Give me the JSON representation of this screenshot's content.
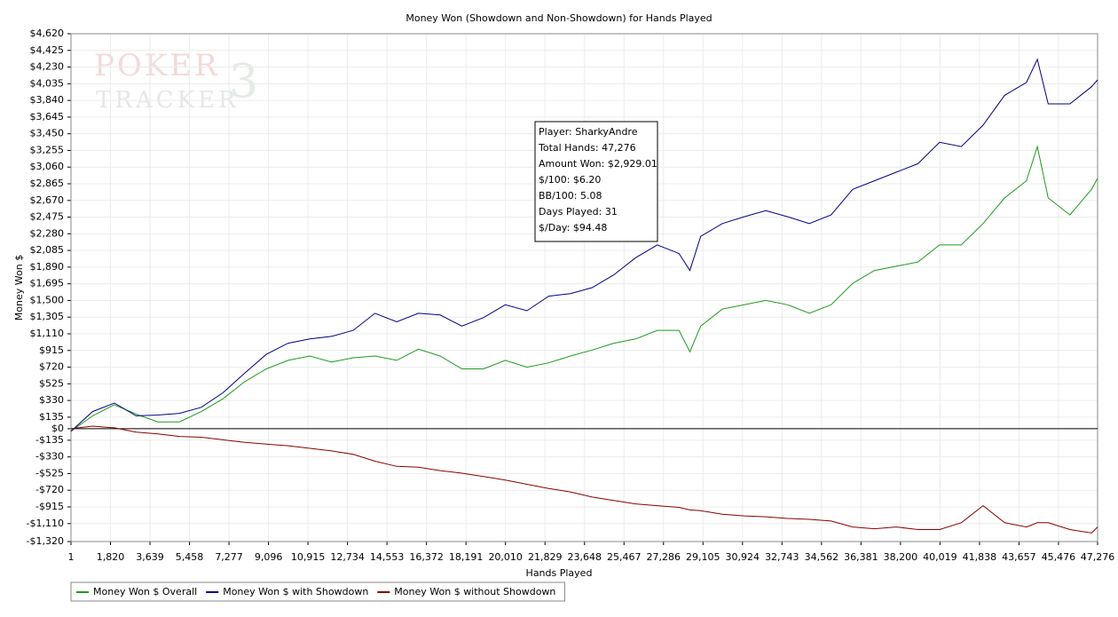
{
  "chart_data": {
    "type": "line",
    "title": "Money Won (Showdown and Non-Showdown) for Hands Played",
    "xlabel": "Hands Played",
    "ylabel": "Money Won $",
    "watermark": [
      "POKER",
      "TRACKER",
      "3"
    ],
    "annotation": [
      "Player: SharkyAndre",
      "Total Hands: 47,276",
      "Amount Won: $2,929.01",
      "$/100: $6.20",
      "BB/100: 5.08",
      "Days Played: 31",
      "$/Day: $94.48"
    ],
    "grid": true,
    "legend": "bottom-left",
    "x": [
      1,
      1000,
      2000,
      3000,
      4000,
      5000,
      6000,
      7000,
      8000,
      9000,
      10000,
      11000,
      12000,
      13000,
      14000,
      15000,
      16000,
      17000,
      18000,
      19000,
      20000,
      21000,
      22000,
      23000,
      24000,
      25000,
      26000,
      27000,
      28000,
      28500,
      29000,
      30000,
      31000,
      32000,
      33000,
      34000,
      35000,
      36000,
      37000,
      38000,
      39000,
      40000,
      41000,
      42000,
      43000,
      44000,
      44500,
      45000,
      46000,
      47000,
      47276
    ],
    "series": [
      {
        "name": "Money Won $ Overall",
        "color": "#1f9a1f",
        "values": [
          -30,
          150,
          280,
          170,
          80,
          80,
          200,
          350,
          550,
          700,
          800,
          850,
          780,
          830,
          850,
          800,
          930,
          850,
          700,
          700,
          800,
          720,
          770,
          850,
          920,
          1000,
          1050,
          1150,
          1150,
          900,
          1200,
          1400,
          1450,
          1500,
          1450,
          1350,
          1450,
          1700,
          1850,
          1900,
          1950,
          2150,
          2150,
          2400,
          2700,
          2900,
          3300,
          2700,
          2500,
          2800,
          2929
        ]
      },
      {
        "name": "Money Won $ with Showdown",
        "color": "#00008b",
        "values": [
          -30,
          200,
          300,
          150,
          160,
          180,
          250,
          420,
          650,
          870,
          1000,
          1050,
          1080,
          1150,
          1350,
          1250,
          1350,
          1330,
          1200,
          1300,
          1450,
          1380,
          1550,
          1580,
          1650,
          1800,
          2000,
          2150,
          2050,
          1850,
          2250,
          2400,
          2480,
          2550,
          2480,
          2400,
          2500,
          2800,
          2900,
          3000,
          3100,
          3350,
          3300,
          3550,
          3900,
          4050,
          4320,
          3800,
          3800,
          4000,
          4080
        ]
      },
      {
        "name": "Money Won $ without Showdown",
        "color": "#8b0000",
        "values": [
          0,
          30,
          10,
          -40,
          -60,
          -90,
          -100,
          -130,
          -160,
          -180,
          -200,
          -230,
          -260,
          -300,
          -380,
          -440,
          -450,
          -490,
          -520,
          -560,
          -600,
          -650,
          -700,
          -740,
          -800,
          -840,
          -880,
          -900,
          -920,
          -950,
          -960,
          -1000,
          -1020,
          -1030,
          -1050,
          -1060,
          -1080,
          -1150,
          -1170,
          -1150,
          -1180,
          -1180,
          -1100,
          -900,
          -1100,
          -1150,
          -1100,
          -1100,
          -1180,
          -1220,
          -1150
        ]
      }
    ],
    "xlim": [
      1,
      47276
    ],
    "xticks": [
      1,
      {
        "value": 1820,
        "label": "1,820"
      },
      {
        "value": 3639,
        "label": "3,639"
      },
      {
        "value": 5458,
        "label": "5,458"
      },
      {
        "value": 7277,
        "label": "7,277"
      },
      {
        "value": 9096,
        "label": "9,096"
      },
      {
        "value": 10915,
        "label": "10,915"
      },
      {
        "value": 12734,
        "label": "12,734"
      },
      {
        "value": 14553,
        "label": "14,553"
      },
      {
        "value": 16372,
        "label": "16,372"
      },
      {
        "value": 18191,
        "label": "18,191"
      },
      {
        "value": 20010,
        "label": "20,010"
      },
      {
        "value": 21829,
        "label": "21,829"
      },
      {
        "value": 23648,
        "label": "23,648"
      },
      {
        "value": 25467,
        "label": "25,467"
      },
      {
        "value": 27286,
        "label": "27,286"
      },
      {
        "value": 29105,
        "label": "29,105"
      },
      {
        "value": 30924,
        "label": "30,924"
      },
      {
        "value": 32743,
        "label": "32,743"
      },
      {
        "value": 34562,
        "label": "34,562"
      },
      {
        "value": 36381,
        "label": "36,381"
      },
      {
        "value": 38200,
        "label": "38,200"
      },
      {
        "value": 40019,
        "label": "40,019"
      },
      {
        "value": 41838,
        "label": "41,838"
      },
      {
        "value": 43657,
        "label": "43,657"
      },
      {
        "value": 45476,
        "label": "45,476"
      },
      {
        "value": 47276,
        "label": "47,276"
      }
    ],
    "ylim": [
      -1320,
      4620
    ],
    "yticks": [
      {
        "value": 4620,
        "label": "$4,620"
      },
      {
        "value": 4425,
        "label": "$4,425"
      },
      {
        "value": 4230,
        "label": "$4,230"
      },
      {
        "value": 4035,
        "label": "$4,035"
      },
      {
        "value": 3840,
        "label": "$3,840"
      },
      {
        "value": 3645,
        "label": "$3,645"
      },
      {
        "value": 3450,
        "label": "$3,450"
      },
      {
        "value": 3255,
        "label": "$3,255"
      },
      {
        "value": 3060,
        "label": "$3,060"
      },
      {
        "value": 2865,
        "label": "$2,865"
      },
      {
        "value": 2670,
        "label": "$2,670"
      },
      {
        "value": 2475,
        "label": "$2,475"
      },
      {
        "value": 2280,
        "label": "$2,280"
      },
      {
        "value": 2085,
        "label": "$2,085"
      },
      {
        "value": 1890,
        "label": "$1,890"
      },
      {
        "value": 1695,
        "label": "$1,695"
      },
      {
        "value": 1500,
        "label": "$1,500"
      },
      {
        "value": 1305,
        "label": "$1,305"
      },
      {
        "value": 1110,
        "label": "$1,110"
      },
      {
        "value": 915,
        "label": "$915"
      },
      {
        "value": 720,
        "label": "$720"
      },
      {
        "value": 525,
        "label": "$525"
      },
      {
        "value": 330,
        "label": "$330"
      },
      {
        "value": 135,
        "label": "$135"
      },
      {
        "value": 0,
        "label": "$0"
      },
      {
        "value": -135,
        "label": "-$135"
      },
      {
        "value": -330,
        "label": "-$330"
      },
      {
        "value": -525,
        "label": "-$525"
      },
      {
        "value": -720,
        "label": "-$720"
      },
      {
        "value": -915,
        "label": "-$915"
      },
      {
        "value": -1110,
        "label": "-$1,110"
      },
      {
        "value": -1320,
        "label": "-$1,320"
      }
    ]
  }
}
